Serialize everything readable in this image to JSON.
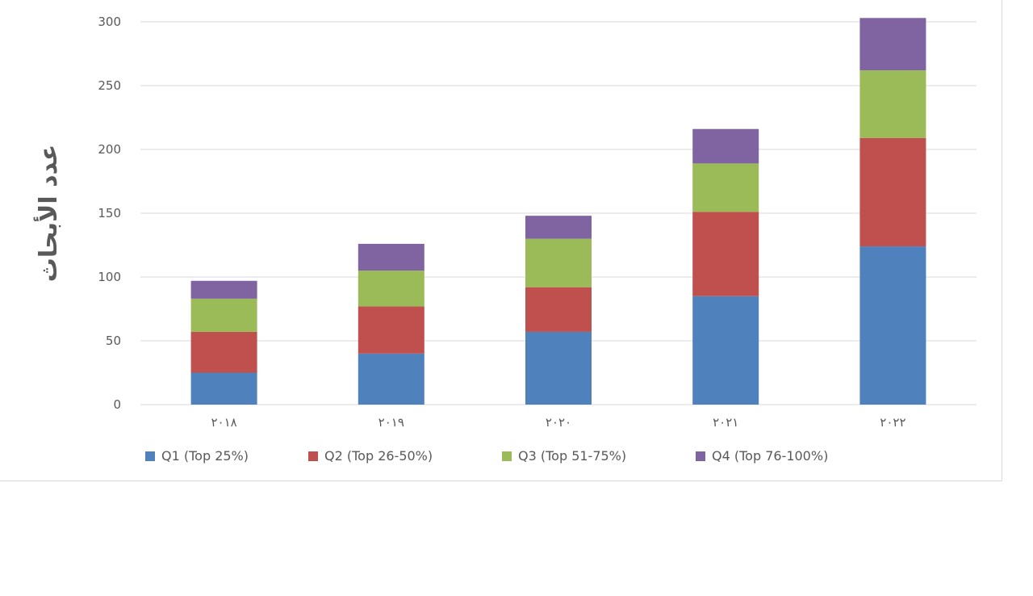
{
  "chart_data": {
    "type": "bar",
    "stacked": true,
    "categories": [
      "٢٠١٨",
      "٢٠١٩",
      "٢٠٢٠",
      "٢٠٢١",
      "٢٠٢٢"
    ],
    "series": [
      {
        "name": "Q1 (Top 25%)",
        "color": "#4f81bd",
        "values": [
          25,
          40,
          57,
          85,
          124
        ]
      },
      {
        "name": "Q2 (Top 26-50%)",
        "color": "#c0504d",
        "values": [
          32,
          37,
          35,
          66,
          85
        ]
      },
      {
        "name": "Q3 (Top 51-75%)",
        "color": "#9bbb59",
        "values": [
          26,
          28,
          38,
          38,
          53
        ]
      },
      {
        "name": "Q4 (Top 76-100%)",
        "color": "#8064a2",
        "values": [
          14,
          21,
          18,
          27,
          41
        ]
      }
    ],
    "ylabel": "عدد الأبحاث",
    "xlabel": "",
    "title": "",
    "ylim": [
      0,
      300
    ],
    "yticks": [
      0,
      50,
      100,
      150,
      200,
      250,
      300
    ],
    "grid": true,
    "legend_position": "bottom"
  }
}
